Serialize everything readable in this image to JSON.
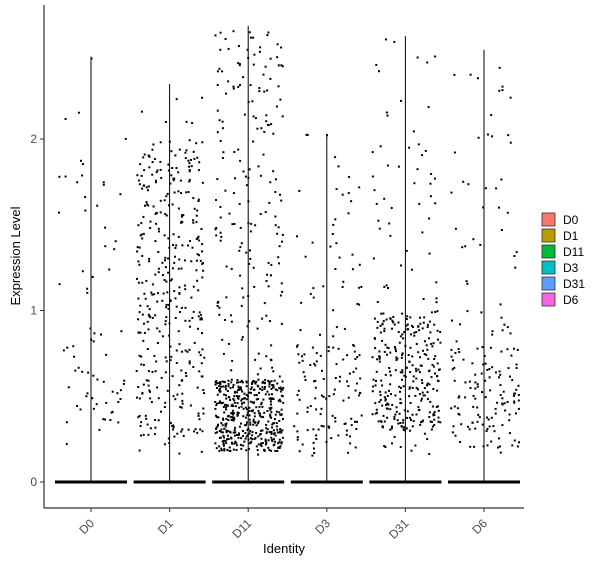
{
  "chart_data": {
    "type": "violin-jitter",
    "xlabel": "Identity",
    "ylabel": "Expression Level",
    "categories": [
      "D0",
      "D1",
      "D11",
      "D3",
      "D31",
      "D6"
    ],
    "ylim": [
      -0.15,
      2.7
    ],
    "yticks": [
      0,
      1,
      2
    ],
    "grid": false,
    "legend": {
      "position": "right",
      "entries": [
        {
          "label": "D0",
          "color": "#F8766D"
        },
        {
          "label": "D1",
          "color": "#B79F00"
        },
        {
          "label": "D11",
          "color": "#00BA38"
        },
        {
          "label": "D3",
          "color": "#00BFC4"
        },
        {
          "label": "D31",
          "color": "#619CFF"
        },
        {
          "label": "D6",
          "color": "#F564E3"
        }
      ]
    },
    "series": [
      {
        "name": "D0",
        "max": 2.48,
        "point_count": 70,
        "dense_low": 0.3,
        "dense_high": 0.8,
        "dense_frac": 0.45
      },
      {
        "name": "D1",
        "max": 2.32,
        "point_count": 380,
        "dense_low": 0.25,
        "dense_high": 2.0,
        "dense_frac": 0.85
      },
      {
        "name": "D11",
        "max": 2.66,
        "point_count": 620,
        "dense_low": 0.18,
        "dense_high": 0.6,
        "dense_frac": 0.65
      },
      {
        "name": "D3",
        "max": 2.03,
        "point_count": 150,
        "dense_low": 0.15,
        "dense_high": 0.8,
        "dense_frac": 0.6
      },
      {
        "name": "D31",
        "max": 2.6,
        "point_count": 340,
        "dense_low": 0.3,
        "dense_high": 1.0,
        "dense_frac": 0.75
      },
      {
        "name": "D6",
        "max": 2.52,
        "point_count": 170,
        "dense_low": 0.18,
        "dense_high": 0.8,
        "dense_frac": 0.6
      }
    ]
  }
}
